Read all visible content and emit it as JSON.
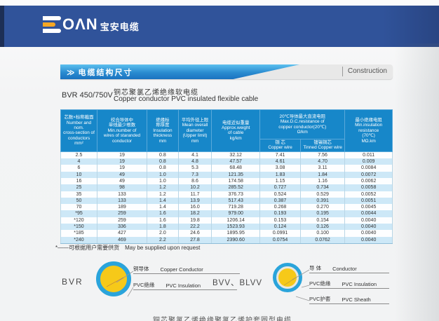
{
  "brand": {
    "logo_latin": "OΛN",
    "logo_cn": "宝安电缆"
  },
  "section": {
    "chevron": "≫",
    "title_cn": "电缆结构尺寸",
    "title_en": "Construction"
  },
  "product": {
    "model": "BVR 450/750V",
    "name_cn": "铜芯聚氯乙烯绝缘软电缆",
    "name_en": "Copper conductor  PVC insulated flexible cable"
  },
  "table": {
    "headers": {
      "conductors": "芯数×标称截面\nNumber and nom.\ncross-section of\nconductors\nmm²",
      "min_wires": "绞合导体中\n单线最少根数\nMin.number of\nwires of staranded\nconductor",
      "insulation": "绝缘标\n称厚度\nInsulation\nthickness\nmm",
      "diameter": "平均外径上限\nMean overall\ndiameter\n(Upper limit)\nmm",
      "weight": "电缆近似重量\nApprox.weight\nof cable\nkg/km",
      "resistance_group": "20℃导体最大直流电阻\nMax.D.C.resistance of\ncopper conductor(20℃)\nΩ/km",
      "sub_copper": "铜  芯\nCopper wire",
      "sub_tinned": "镀锡铜芯\nTinned Copper wire",
      "min_insulation": "最小绝缘电阻\nMin.insulation\nresistance\n(70℃)\nMΩ.km"
    },
    "rows": [
      [
        "2.5",
        "19",
        "0.8",
        "4.1",
        "32.12",
        "7.41",
        "7.56",
        "0.011"
      ],
      [
        "4",
        "19",
        "0.8",
        "4.8",
        "47.57",
        "4.61",
        "4.70",
        "0.009"
      ],
      [
        "6",
        "19",
        "0.8",
        "5.3",
        "68.48",
        "3.08",
        "3.11",
        "0.0084"
      ],
      [
        "10",
        "49",
        "1.0",
        "7.3",
        "121.35",
        "1.83",
        "1.84",
        "0.0072"
      ],
      [
        "16",
        "49",
        "1.0",
        "8.6",
        "174.58",
        "1.15",
        "1.16",
        "0.0062"
      ],
      [
        "25",
        "98",
        "1.2",
        "10.2",
        "285.52",
        "0.727",
        "0.734",
        "0.0058"
      ],
      [
        "35",
        "133",
        "1.2",
        "11.7",
        "376.73",
        "0.524",
        "0.529",
        "0.0052"
      ],
      [
        "50",
        "133",
        "1.4",
        "13.9",
        "517.43",
        "0.387",
        "0.391",
        "0.0051"
      ],
      [
        "70",
        "189",
        "1.4",
        "16.0",
        "719.28",
        "0.268",
        "0.270",
        "0.0045"
      ],
      [
        "*95",
        "259",
        "1.6",
        "18.2",
        "979.00",
        "0.193",
        "0.195",
        "0.0044"
      ],
      [
        "*120",
        "259",
        "1.6",
        "19.8",
        "1206.14",
        "0.153",
        "0.154",
        "0.0040"
      ],
      [
        "*150",
        "336",
        "1.8",
        "22.2",
        "1523.93",
        "0.124",
        "0.126",
        "0.0040"
      ],
      [
        "*185",
        "427",
        "2.0",
        "24.6",
        "1895.95",
        "0.0991",
        "0.100",
        "0.0040"
      ],
      [
        "*240",
        "469",
        "2.2",
        "27.8",
        "2390.60",
        "0.0754",
        "0.0762",
        "0.0040"
      ]
    ]
  },
  "footnote": "*——可根据用户需要供货　May be supplied upon request",
  "diagrams": {
    "bvr": {
      "label": "BVR",
      "parts": [
        {
          "cn": "铜导体",
          "en": "Copper Conductor"
        },
        {
          "cn": "PVC绝缘",
          "en": "PVC Insulation"
        }
      ]
    },
    "bvv": {
      "label": "BVV、BLVV",
      "parts": [
        {
          "cn": "导 体",
          "en": "Conductor"
        },
        {
          "cn": "PVC绝缘",
          "en": "PVC Insulation"
        },
        {
          "cn": "PVC护套",
          "en": "PVC Sheath"
        }
      ]
    }
  },
  "bottom": {
    "next_title_cn": "铜芯聚氯乙烯绝缘聚氯乙烯护套圆型电缆"
  },
  "colors": {
    "banner_blue": "#30539a",
    "accent_orange": "#f5a623",
    "table_header_blue": "#1787c9",
    "row_alt_blue": "#cde8f7",
    "ring_blue": "#2aa4db",
    "core_yellow": "#f6c919",
    "bar_gradient_start": "#5cc0ee",
    "bar_gradient_end": "#1a72c0"
  }
}
